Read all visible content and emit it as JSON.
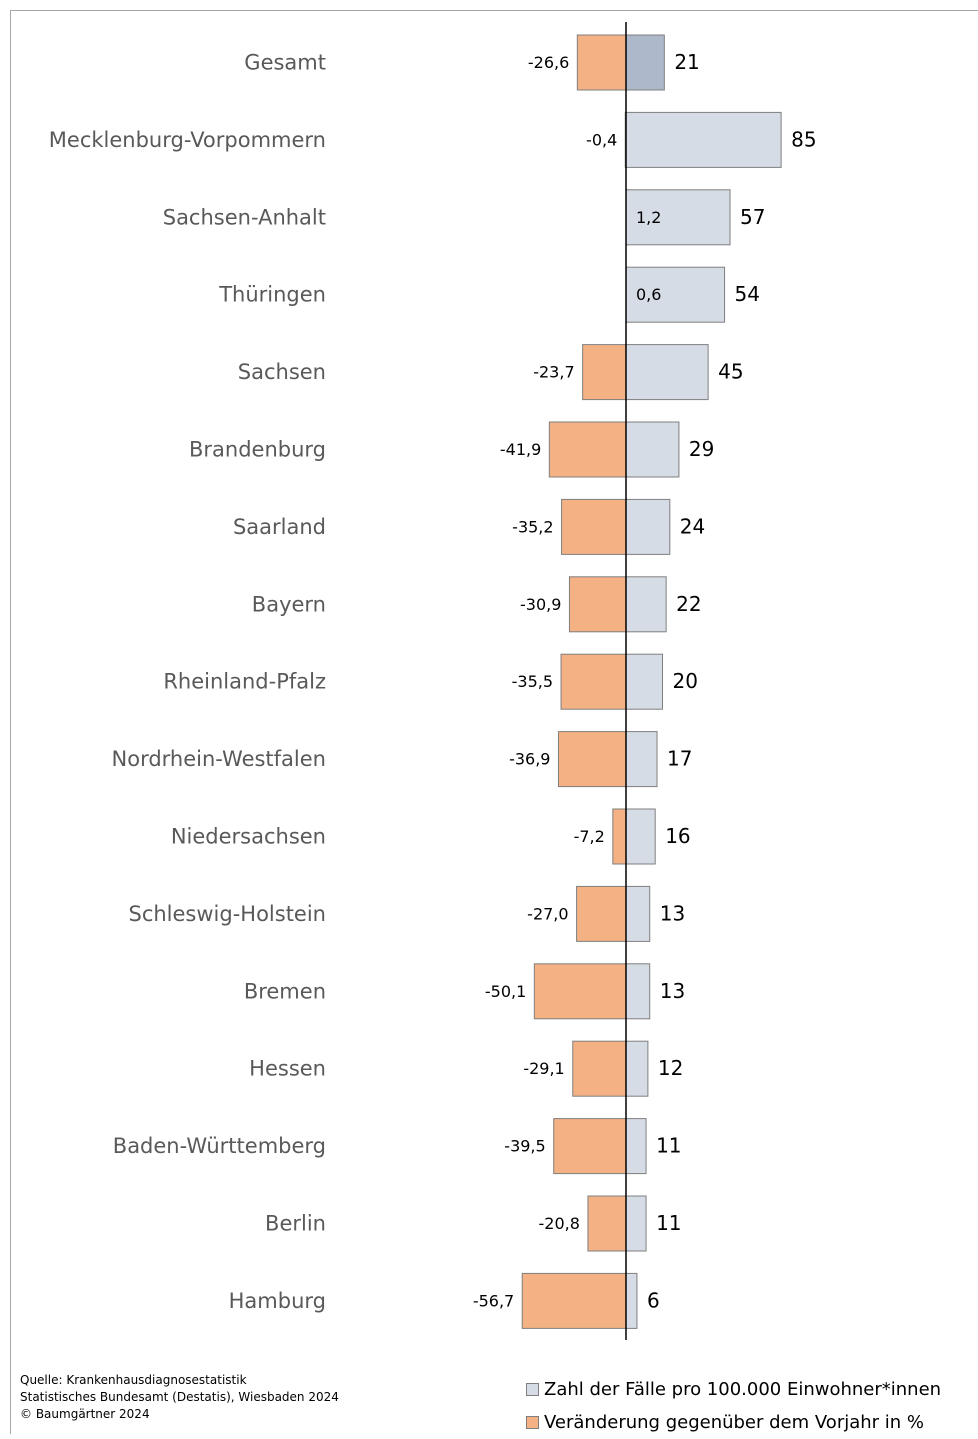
{
  "chart_data": {
    "type": "bar",
    "orientation": "horizontal-diverging",
    "categories": [
      "Gesamt",
      "Mecklenburg-Vorpommern",
      "Sachsen-Anhalt",
      "Thüringen",
      "Sachsen",
      "Brandenburg",
      "Saarland",
      "Bayern",
      "Rheinland-Pfalz",
      "Nordrhein-Westfalen",
      "Niedersachsen",
      "Schleswig-Holstein",
      "Bremen",
      "Hessen",
      "Baden-Württemberg",
      "Berlin",
      "Hamburg"
    ],
    "series": [
      {
        "name": "Zahl der Fälle pro 100.000 Einwohner*innen",
        "values": [
          21,
          85,
          57,
          54,
          45,
          29,
          24,
          22,
          20,
          17,
          16,
          13,
          13,
          12,
          11,
          11,
          6
        ],
        "labels": [
          "21",
          "85",
          "57",
          "54",
          "45",
          "29",
          "24",
          "22",
          "20",
          "17",
          "16",
          "13",
          "13",
          "12",
          "11",
          "11",
          "6"
        ],
        "color": "#d6dce5",
        "highlight_color": "#adb9ca"
      },
      {
        "name": "Veränderung gegenüber dem Vorjahr in %",
        "values": [
          -26.6,
          -0.4,
          1.2,
          0.6,
          -23.7,
          -41.9,
          -35.2,
          -30.9,
          -35.5,
          -36.9,
          -7.2,
          -27.0,
          -50.1,
          -29.1,
          -39.5,
          -20.8,
          -56.7
        ],
        "labels": [
          "-26,6",
          "-0,4",
          "1,2",
          "0,6",
          "-23,7",
          "-41,9",
          "-35,2",
          "-30,9",
          "-35,5",
          "-36,9",
          "-7,2",
          "-27,0",
          "-50,1",
          "-29,1",
          "-39,5",
          "-20,8",
          "-56,7"
        ],
        "color": "#f4b183"
      }
    ],
    "highlight_category": "Gesamt",
    "axis_line": "vertical at zero",
    "grid": false,
    "legend_position": "bottom-right"
  },
  "source": {
    "lines": [
      "Quelle: Krankenhausdiagnosestatistik",
      "Statistisches Bundesamt (Destatis), Wiesbaden 2024",
      "© Baumgärtner 2024"
    ]
  },
  "legend": {
    "items": [
      {
        "label": "Zahl der Fälle pro 100.000 Einwohner*innen",
        "color": "#d6dce5"
      },
      {
        "label": "Veränderung gegenüber dem Vorjahr in %",
        "color": "#f4b183"
      }
    ]
  }
}
